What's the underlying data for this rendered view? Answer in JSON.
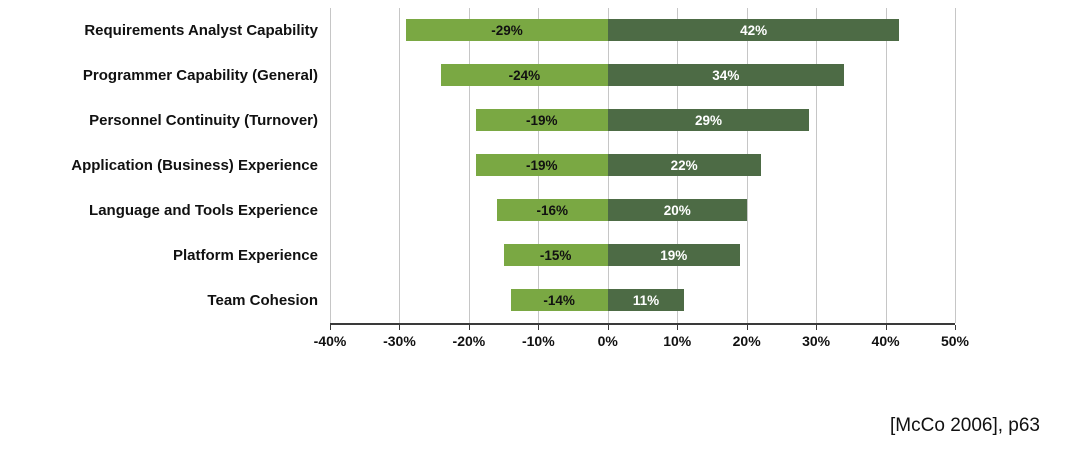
{
  "chart_data": {
    "type": "bar",
    "orientation": "horizontal-diverging",
    "categories": [
      "Requirements Analyst Capability",
      "Programmer Capability (General)",
      "Personnel Continuity (Turnover)",
      "Application (Business) Experience",
      "Language and Tools Experience",
      "Platform Experience",
      "Team Cohesion"
    ],
    "series": [
      {
        "name": "negative-impact",
        "values": [
          -29,
          -24,
          -19,
          -19,
          -16,
          -15,
          -14
        ],
        "color": "#7aa843"
      },
      {
        "name": "positive-impact",
        "values": [
          42,
          34,
          29,
          22,
          20,
          19,
          11
        ],
        "color": "#4d6b45"
      }
    ],
    "labels": {
      "negative": [
        "-29%",
        "-24%",
        "-19%",
        "-19%",
        "-16%",
        "-15%",
        "-14%"
      ],
      "positive": [
        "42%",
        "34%",
        "29%",
        "22%",
        "20%",
        "19%",
        "11%"
      ]
    },
    "xlim": [
      -40,
      50
    ],
    "xticks": [
      "-40%",
      "-30%",
      "-20%",
      "-10%",
      "0%",
      "10%",
      "20%",
      "30%",
      "40%",
      "50%"
    ],
    "grid": true,
    "legend": "none",
    "title": ""
  },
  "citation": "[McCo 2006], p63",
  "colors": {
    "negative_bar": "#7aa843",
    "positive_bar": "#4d6b45",
    "gridline": "#c6c6c6",
    "axis": "#3a3a3a",
    "text": "#111111"
  }
}
